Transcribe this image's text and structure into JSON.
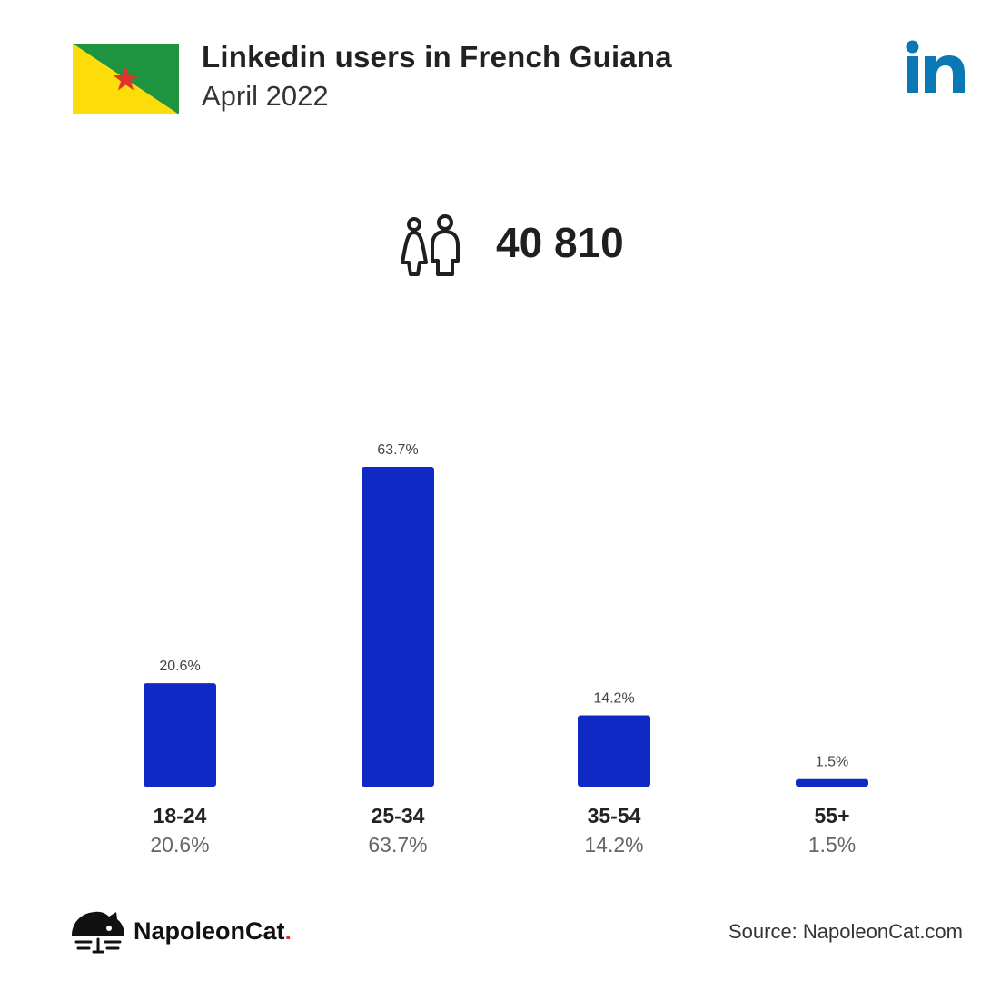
{
  "header": {
    "title": "Linkedin users in French Guiana",
    "subtitle": "April 2022"
  },
  "total_users": "40 810",
  "colors": {
    "bar": "#0f2ac4",
    "linkedin": "#0a78b4",
    "flag_green": "#1f9440",
    "flag_yellow": "#fcdd09",
    "flag_star": "#e0332b"
  },
  "icons": [
    "flag-french-guiana-icon",
    "linkedin-logo-icon",
    "users-icon",
    "napoleoncat-logo-icon"
  ],
  "chart_data": {
    "type": "bar",
    "categories": [
      "18-24",
      "25-34",
      "35-54",
      "55+"
    ],
    "values": [
      20.6,
      63.7,
      14.2,
      1.5
    ],
    "value_labels": [
      "20.6%",
      "63.7%",
      "14.2%",
      "1.5%"
    ],
    "unit": "%",
    "ylim": [
      0,
      63.7
    ],
    "grid": false,
    "title": "",
    "xlabel": "",
    "ylabel": ""
  },
  "footer": {
    "brand": "NapoleonCat",
    "brand_dot": ".",
    "source": "Source: NapoleonCat.com"
  }
}
